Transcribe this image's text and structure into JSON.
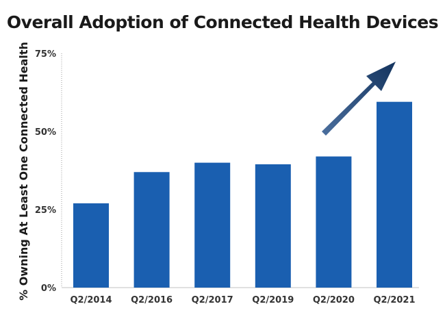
{
  "chart_data": {
    "type": "bar",
    "title": "Overall Adoption of Connected Health Devices",
    "ylabel": "% Owning At Least One Connected Health",
    "xlabel": "",
    "categories": [
      "Q2/2014",
      "Q2/2016",
      "Q2/2017",
      "Q2/2019",
      "Q2/2020",
      "Q2/2021"
    ],
    "values": [
      27,
      37,
      40,
      39.5,
      42,
      59.5
    ],
    "ylim": [
      0,
      75
    ],
    "yticks": [
      0,
      25,
      50,
      75
    ],
    "ytick_labels": [
      "0%",
      "25%",
      "50%",
      "75%"
    ],
    "grid": false,
    "colors": {
      "bar": "#1a5fb0",
      "arrow": "#14345e"
    },
    "annotations": [
      {
        "type": "arrow",
        "direction": "upward trend"
      }
    ]
  }
}
